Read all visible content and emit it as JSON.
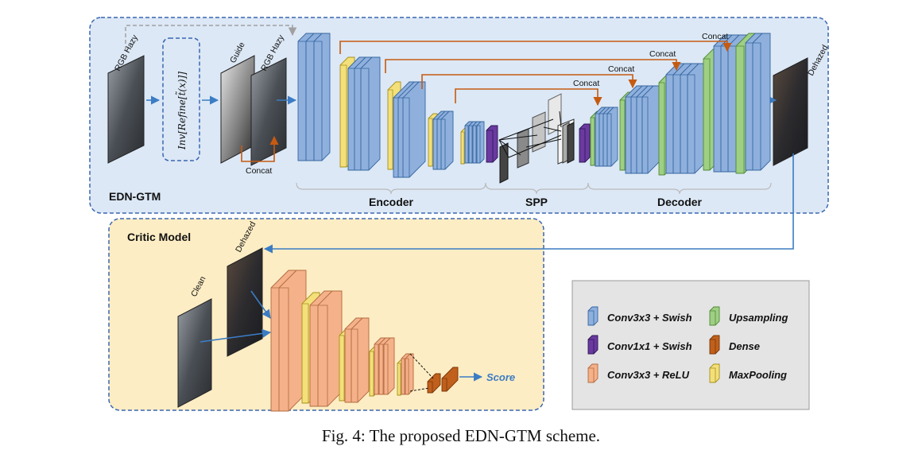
{
  "diagram": {
    "edn_gtm_label": "EDN-GTM",
    "critic_label": "Critic Model",
    "inputs": {
      "rgb_hazy_left": "RGB Hazy",
      "guide": "Guide",
      "rgb_hazy_right": "RGB Hazy",
      "dehazed_out": "Dehazed",
      "clean": "Clean",
      "dehazed_in": "Dehazed"
    },
    "refine_formula": "Inv[Refine[t̃(x)]]",
    "concat_labels": [
      "Concat",
      "Concat",
      "Concat",
      "Concat",
      "Concat"
    ],
    "sections": {
      "encoder": "Encoder",
      "spp": "SPP",
      "decoder": "Decoder"
    },
    "score_label": "Score",
    "legend": [
      {
        "label": "Conv3x3 + Swish",
        "color": "#8fb0dd",
        "icon": "blue-layer-icon"
      },
      {
        "label": "Upsampling",
        "color": "#9fcf83",
        "icon": "green-layer-icon"
      },
      {
        "label": "Conv1x1 + Swish",
        "color": "#6a3aa0",
        "icon": "purple-layer-icon"
      },
      {
        "label": "Dense",
        "color": "#c0601c",
        "icon": "orange-layer-icon"
      },
      {
        "label": "Conv3x3 + ReLU",
        "color": "#f4b18a",
        "icon": "salmon-layer-icon"
      },
      {
        "label": "MaxPooling",
        "color": "#f3e07a",
        "icon": "yellow-layer-icon"
      }
    ],
    "colors": {
      "edn_bg": "#dce8f6",
      "critic_bg": "#fdedc4",
      "legend_bg": "#e4e4e4",
      "arrow_blue": "#3b7cc4",
      "arrow_orange": "#c55a11",
      "border_blue": "#3a66b0"
    }
  },
  "caption": "Fig. 4: The proposed EDN-GTM scheme."
}
